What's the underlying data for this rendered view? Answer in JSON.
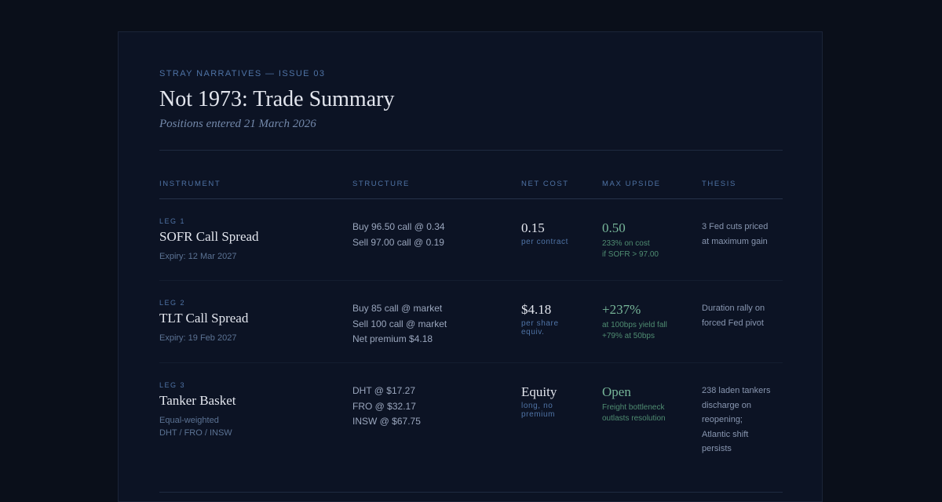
{
  "header": {
    "kicker": "STRAY NARRATIVES — ISSUE 03",
    "title": "Not 1973: Trade Summary",
    "subtitle": "Positions entered 21 March 2026"
  },
  "columns": [
    "INSTRUMENT",
    "STRUCTURE",
    "NET COST",
    "MAX UPSIDE",
    "THESIS"
  ],
  "rows": [
    {
      "leg": "LEG 1",
      "instrument": "SOFR Call Spread",
      "detail": [
        "Expiry: 12 Mar 2027"
      ],
      "structure": [
        "Buy 96.50 call @ 0.34",
        "Sell 97.00 call @ 0.19"
      ],
      "net_cost": "0.15",
      "net_cost_note": "per contract",
      "max_upside": "0.50",
      "upside_notes": [
        "233% on cost",
        "if SOFR > 97.00"
      ],
      "thesis": [
        "3 Fed cuts priced",
        "at maximum gain"
      ]
    },
    {
      "leg": "LEG 2",
      "instrument": "TLT Call Spread",
      "detail": [
        "Expiry: 19 Feb 2027"
      ],
      "structure": [
        "Buy 85 call @ market",
        "Sell 100 call @ market",
        "Net premium $4.18"
      ],
      "net_cost": "$4.18",
      "net_cost_note": "per share equiv.",
      "max_upside": "+237%",
      "upside_notes": [
        "at 100bps yield fall",
        "+79% at 50bps"
      ],
      "thesis": [
        "Duration rally on",
        "forced Fed pivot"
      ]
    },
    {
      "leg": "LEG 3",
      "instrument": "Tanker Basket",
      "detail": [
        "Equal-weighted",
        "DHT / FRO / INSW"
      ],
      "structure": [
        "DHT @ $17.27",
        "FRO @ $32.17",
        "INSW @ $67.75"
      ],
      "net_cost": "Equity",
      "net_cost_note": "long, no premium",
      "max_upside": "Open",
      "upside_notes": [
        "Freight bottleneck",
        "outlasts resolution"
      ],
      "thesis": [
        "238 laden tankers",
        "discharge on",
        "reopening;",
        "Atlantic shift",
        "persists"
      ]
    }
  ]
}
